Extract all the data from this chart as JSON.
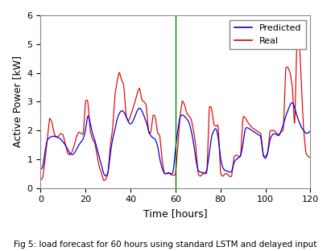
{
  "xlabel": "Time [hours]",
  "ylabel": "Active Power [kW]",
  "caption": "Fig 5: load forecast for 60 hours using standard LSTM and delayed input",
  "xlim": [
    0,
    120
  ],
  "ylim": [
    0,
    6
  ],
  "vline_x": 60,
  "vline_color": "#008000",
  "predicted_color": "#0000dd",
  "real_color": "#dd0000",
  "legend_labels": [
    "Predicted",
    "Real"
  ],
  "xticks": [
    0,
    20,
    40,
    60,
    80,
    100,
    120
  ],
  "yticks": [
    0,
    1,
    2,
    3,
    4,
    5,
    6
  ],
  "bg_color": "#ffffff",
  "figure_bg": "#ffffff",
  "real_points": [
    [
      0,
      0.28
    ],
    [
      1,
      0.35
    ],
    [
      2,
      1.0
    ],
    [
      3,
      1.7
    ],
    [
      4,
      2.45
    ],
    [
      5,
      2.3
    ],
    [
      6,
      1.9
    ],
    [
      7,
      1.75
    ],
    [
      8,
      1.8
    ],
    [
      9,
      1.9
    ],
    [
      10,
      1.85
    ],
    [
      11,
      1.55
    ],
    [
      12,
      1.2
    ],
    [
      13,
      1.15
    ],
    [
      14,
      1.25
    ],
    [
      15,
      1.5
    ],
    [
      16,
      1.8
    ],
    [
      17,
      1.95
    ],
    [
      18,
      1.9
    ],
    [
      19,
      1.85
    ],
    [
      20,
      3.05
    ],
    [
      21,
      3.05
    ],
    [
      22,
      2.0
    ],
    [
      23,
      1.7
    ],
    [
      24,
      1.6
    ],
    [
      25,
      1.2
    ],
    [
      26,
      0.75
    ],
    [
      27,
      0.55
    ],
    [
      28,
      0.25
    ],
    [
      29,
      0.3
    ],
    [
      30,
      0.5
    ],
    [
      31,
      1.5
    ],
    [
      32,
      2.0
    ],
    [
      33,
      3.2
    ],
    [
      34,
      3.7
    ],
    [
      35,
      4.05
    ],
    [
      36,
      3.75
    ],
    [
      37,
      3.6
    ],
    [
      38,
      2.5
    ],
    [
      39,
      2.3
    ],
    [
      40,
      2.5
    ],
    [
      41,
      2.75
    ],
    [
      42,
      3.0
    ],
    [
      43,
      3.3
    ],
    [
      44,
      3.5
    ],
    [
      45,
      3.05
    ],
    [
      46,
      3.0
    ],
    [
      47,
      2.9
    ],
    [
      48,
      1.9
    ],
    [
      49,
      1.9
    ],
    [
      50,
      2.55
    ],
    [
      51,
      2.5
    ],
    [
      52,
      1.9
    ],
    [
      53,
      1.85
    ],
    [
      54,
      1.0
    ],
    [
      55,
      0.5
    ],
    [
      56,
      0.5
    ],
    [
      57,
      0.55
    ],
    [
      58,
      0.45
    ],
    [
      59,
      0.45
    ],
    [
      60,
      0.45
    ],
    [
      61,
      1.4
    ],
    [
      62,
      2.5
    ],
    [
      63,
      3.05
    ],
    [
      64,
      2.9
    ],
    [
      65,
      2.6
    ],
    [
      66,
      2.5
    ],
    [
      67,
      2.4
    ],
    [
      68,
      2.0
    ],
    [
      69,
      1.5
    ],
    [
      70,
      0.5
    ],
    [
      71,
      0.4
    ],
    [
      72,
      0.5
    ],
    [
      73,
      0.5
    ],
    [
      74,
      0.5
    ],
    [
      75,
      2.85
    ],
    [
      76,
      2.8
    ],
    [
      77,
      2.2
    ],
    [
      78,
      2.15
    ],
    [
      79,
      2.2
    ],
    [
      80,
      0.5
    ],
    [
      81,
      0.4
    ],
    [
      82,
      0.5
    ],
    [
      83,
      0.5
    ],
    [
      84,
      0.4
    ],
    [
      85,
      0.4
    ],
    [
      86,
      1.1
    ],
    [
      87,
      1.15
    ],
    [
      88,
      1.1
    ],
    [
      89,
      1.1
    ],
    [
      90,
      2.5
    ],
    [
      91,
      2.45
    ],
    [
      92,
      2.3
    ],
    [
      93,
      2.2
    ],
    [
      94,
      2.1
    ],
    [
      95,
      2.05
    ],
    [
      96,
      2.0
    ],
    [
      97,
      1.95
    ],
    [
      98,
      1.9
    ],
    [
      99,
      1.1
    ],
    [
      100,
      1.1
    ],
    [
      101,
      1.2
    ],
    [
      102,
      2.0
    ],
    [
      103,
      2.0
    ],
    [
      104,
      2.0
    ],
    [
      105,
      1.9
    ],
    [
      106,
      1.85
    ],
    [
      107,
      1.95
    ],
    [
      108,
      2.0
    ],
    [
      109,
      4.2
    ],
    [
      110,
      4.2
    ],
    [
      111,
      4.0
    ],
    [
      112,
      3.5
    ],
    [
      113,
      2.0
    ],
    [
      114,
      5.3
    ],
    [
      115,
      5.3
    ],
    [
      116,
      3.5
    ],
    [
      117,
      2.0
    ],
    [
      118,
      1.2
    ],
    [
      119,
      1.1
    ],
    [
      120,
      1.05
    ]
  ],
  "pred_points": [
    [
      0,
      0.65
    ],
    [
      1,
      0.7
    ],
    [
      2,
      1.3
    ],
    [
      3,
      1.7
    ],
    [
      4,
      1.75
    ],
    [
      5,
      1.8
    ],
    [
      6,
      1.8
    ],
    [
      7,
      1.78
    ],
    [
      8,
      1.75
    ],
    [
      9,
      1.7
    ],
    [
      10,
      1.6
    ],
    [
      11,
      1.5
    ],
    [
      12,
      1.35
    ],
    [
      13,
      1.2
    ],
    [
      14,
      1.15
    ],
    [
      15,
      1.2
    ],
    [
      16,
      1.35
    ],
    [
      17,
      1.5
    ],
    [
      18,
      1.6
    ],
    [
      19,
      1.7
    ],
    [
      20,
      2.0
    ],
    [
      21,
      2.6
    ],
    [
      22,
      2.3
    ],
    [
      23,
      1.9
    ],
    [
      24,
      1.7
    ],
    [
      25,
      1.4
    ],
    [
      26,
      1.1
    ],
    [
      27,
      0.8
    ],
    [
      28,
      0.5
    ],
    [
      29,
      0.4
    ],
    [
      30,
      0.5
    ],
    [
      31,
      1.2
    ],
    [
      32,
      1.7
    ],
    [
      33,
      2.0
    ],
    [
      34,
      2.4
    ],
    [
      35,
      2.6
    ],
    [
      36,
      2.7
    ],
    [
      37,
      2.65
    ],
    [
      38,
      2.5
    ],
    [
      39,
      2.3
    ],
    [
      40,
      2.2
    ],
    [
      41,
      2.3
    ],
    [
      42,
      2.5
    ],
    [
      43,
      2.7
    ],
    [
      44,
      2.8
    ],
    [
      45,
      2.7
    ],
    [
      46,
      2.5
    ],
    [
      47,
      2.3
    ],
    [
      48,
      2.0
    ],
    [
      49,
      1.8
    ],
    [
      50,
      1.75
    ],
    [
      51,
      1.7
    ],
    [
      52,
      1.5
    ],
    [
      53,
      1.0
    ],
    [
      54,
      0.7
    ],
    [
      55,
      0.5
    ],
    [
      56,
      0.5
    ],
    [
      57,
      0.52
    ],
    [
      58,
      0.5
    ],
    [
      59,
      0.5
    ],
    [
      60,
      1.4
    ],
    [
      61,
      2.0
    ],
    [
      62,
      2.5
    ],
    [
      63,
      2.55
    ],
    [
      64,
      2.5
    ],
    [
      65,
      2.4
    ],
    [
      66,
      2.3
    ],
    [
      67,
      2.0
    ],
    [
      68,
      1.6
    ],
    [
      69,
      1.0
    ],
    [
      70,
      0.6
    ],
    [
      71,
      0.55
    ],
    [
      72,
      0.55
    ],
    [
      73,
      0.5
    ],
    [
      74,
      0.6
    ],
    [
      75,
      1.2
    ],
    [
      76,
      1.8
    ],
    [
      77,
      2.0
    ],
    [
      78,
      2.1
    ],
    [
      79,
      1.8
    ],
    [
      80,
      1.0
    ],
    [
      81,
      0.7
    ],
    [
      82,
      0.6
    ],
    [
      83,
      0.6
    ],
    [
      84,
      0.55
    ],
    [
      85,
      0.55
    ],
    [
      86,
      0.9
    ],
    [
      87,
      1.0
    ],
    [
      88,
      1.05
    ],
    [
      89,
      1.1
    ],
    [
      90,
      1.5
    ],
    [
      91,
      2.1
    ],
    [
      92,
      2.1
    ],
    [
      93,
      2.05
    ],
    [
      94,
      2.0
    ],
    [
      95,
      1.95
    ],
    [
      96,
      1.9
    ],
    [
      97,
      1.85
    ],
    [
      98,
      1.8
    ],
    [
      99,
      1.1
    ],
    [
      100,
      1.0
    ],
    [
      101,
      1.2
    ],
    [
      102,
      1.7
    ],
    [
      103,
      1.85
    ],
    [
      104,
      1.9
    ],
    [
      105,
      1.85
    ],
    [
      106,
      1.8
    ],
    [
      107,
      2.0
    ],
    [
      108,
      2.2
    ],
    [
      109,
      2.5
    ],
    [
      110,
      2.7
    ],
    [
      111,
      2.9
    ],
    [
      112,
      3.0
    ],
    [
      113,
      2.8
    ],
    [
      114,
      2.5
    ],
    [
      115,
      2.3
    ],
    [
      116,
      2.1
    ],
    [
      117,
      2.0
    ],
    [
      118,
      1.9
    ],
    [
      119,
      1.9
    ],
    [
      120,
      2.0
    ]
  ]
}
